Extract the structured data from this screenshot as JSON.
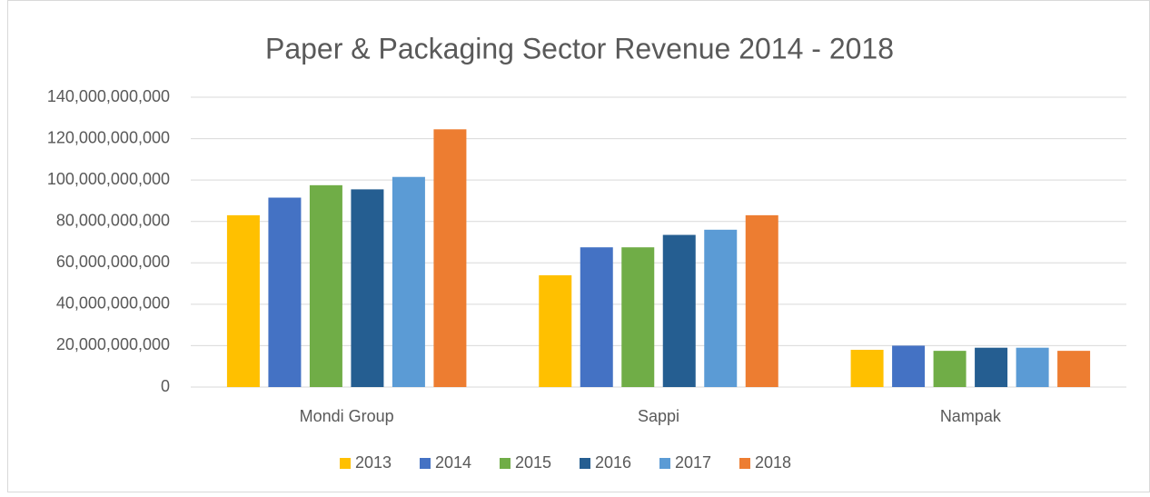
{
  "chart_data": {
    "type": "bar",
    "title": "Paper & Packaging Sector Revenue 2014 - 2018",
    "categories": [
      "Mondi Group",
      "Sappi",
      "Nampak"
    ],
    "series": [
      {
        "name": "2013",
        "color": "#ffc000",
        "values": [
          83000000000,
          54000000000,
          18000000000
        ]
      },
      {
        "name": "2014",
        "color": "#4472c4",
        "values": [
          91500000000,
          67500000000,
          20000000000
        ]
      },
      {
        "name": "2015",
        "color": "#70ad47",
        "values": [
          97500000000,
          67500000000,
          17500000000
        ]
      },
      {
        "name": "2016",
        "color": "#255e91",
        "values": [
          95500000000,
          73500000000,
          19000000000
        ]
      },
      {
        "name": "2017",
        "color": "#5b9bd5",
        "values": [
          101500000000,
          76000000000,
          19000000000
        ]
      },
      {
        "name": "2018",
        "color": "#ed7d31",
        "values": [
          124500000000,
          83000000000,
          17500000000
        ]
      }
    ],
    "ylim": [
      0,
      140000000000
    ],
    "yticks": [
      0,
      {
        "value": 20000000000,
        "label": "20,000,000,000"
      },
      {
        "value": 40000000000,
        "label": "40,000,000,000"
      },
      {
        "value": 60000000000,
        "label": "60,000,000,000"
      },
      {
        "value": 80000000000,
        "label": "80,000,000,000"
      },
      {
        "value": 100000000000,
        "label": "100,000,000,000"
      },
      {
        "value": 120000000000,
        "label": "120,000,000,000"
      },
      {
        "value": 140000000000,
        "label": "140,000,000,000"
      }
    ],
    "grid": true,
    "legend": "bottom"
  }
}
